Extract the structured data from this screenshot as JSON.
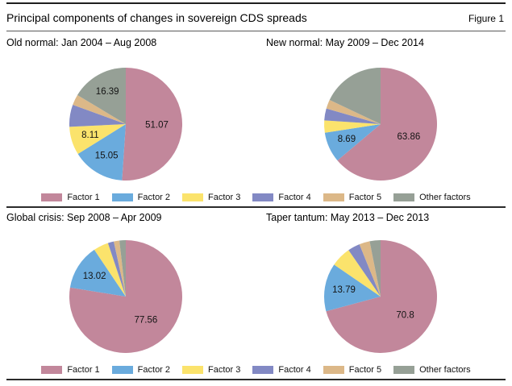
{
  "header": {
    "title": "Principal components of changes in sovereign CDS spreads",
    "figure_label": "Figure 1"
  },
  "legend": {
    "position": "bottom",
    "items": [
      {
        "label": "Factor 1",
        "color": "#c2879b"
      },
      {
        "label": "Factor 2",
        "color": "#6aabdd"
      },
      {
        "label": "Factor 3",
        "color": "#fbe36c"
      },
      {
        "label": "Factor 4",
        "color": "#8289c4"
      },
      {
        "label": "Factor 5",
        "color": "#dcb888"
      },
      {
        "label": "Other factors",
        "color": "#96a096"
      }
    ]
  },
  "chart_data": [
    {
      "type": "pie",
      "title": "Old normal: Jan 2004 – Aug 2008",
      "categories": [
        "Factor 1",
        "Factor 2",
        "Factor 3",
        "Factor 4",
        "Factor 5",
        "Other factors"
      ],
      "values": [
        51.07,
        15.05,
        8.11,
        6.33,
        3.05,
        16.39
      ],
      "labels": [
        "51.07",
        "15.05",
        "8.11",
        "",
        "",
        "16.39"
      ],
      "start_angle_deg": 0,
      "direction": "clockwise"
    },
    {
      "type": "pie",
      "title": "New normal: May 2009 – Dec 2014",
      "categories": [
        "Factor 1",
        "Factor 2",
        "Factor 3",
        "Factor 4",
        "Factor 5",
        "Other factors"
      ],
      "values": [
        63.86,
        8.69,
        3.5,
        3.4,
        2.6,
        17.95
      ],
      "labels": [
        "63.86",
        "8.69",
        "",
        "",
        "",
        ""
      ],
      "start_angle_deg": 0,
      "direction": "clockwise"
    },
    {
      "type": "pie",
      "title": "Global crisis: Sep 2008 – Apr 2009",
      "categories": [
        "Factor 1",
        "Factor 2",
        "Factor 3",
        "Factor 4",
        "Factor 5",
        "Other factors"
      ],
      "values": [
        77.56,
        13.02,
        4.3,
        1.7,
        1.6,
        1.82
      ],
      "labels": [
        "77.56",
        "13.02",
        "",
        "",
        "",
        ""
      ],
      "start_angle_deg": 0,
      "direction": "clockwise"
    },
    {
      "type": "pie",
      "title": "Taper tantum: May 2013 – Dec 2013",
      "categories": [
        "Factor 1",
        "Factor 2",
        "Factor 3",
        "Factor 4",
        "Factor 5",
        "Other factors"
      ],
      "values": [
        70.8,
        13.79,
        5.8,
        3.5,
        3.0,
        3.11
      ],
      "labels": [
        "70.8",
        "13.79",
        "",
        "",
        "",
        ""
      ],
      "start_angle_deg": 0,
      "direction": "clockwise"
    }
  ]
}
